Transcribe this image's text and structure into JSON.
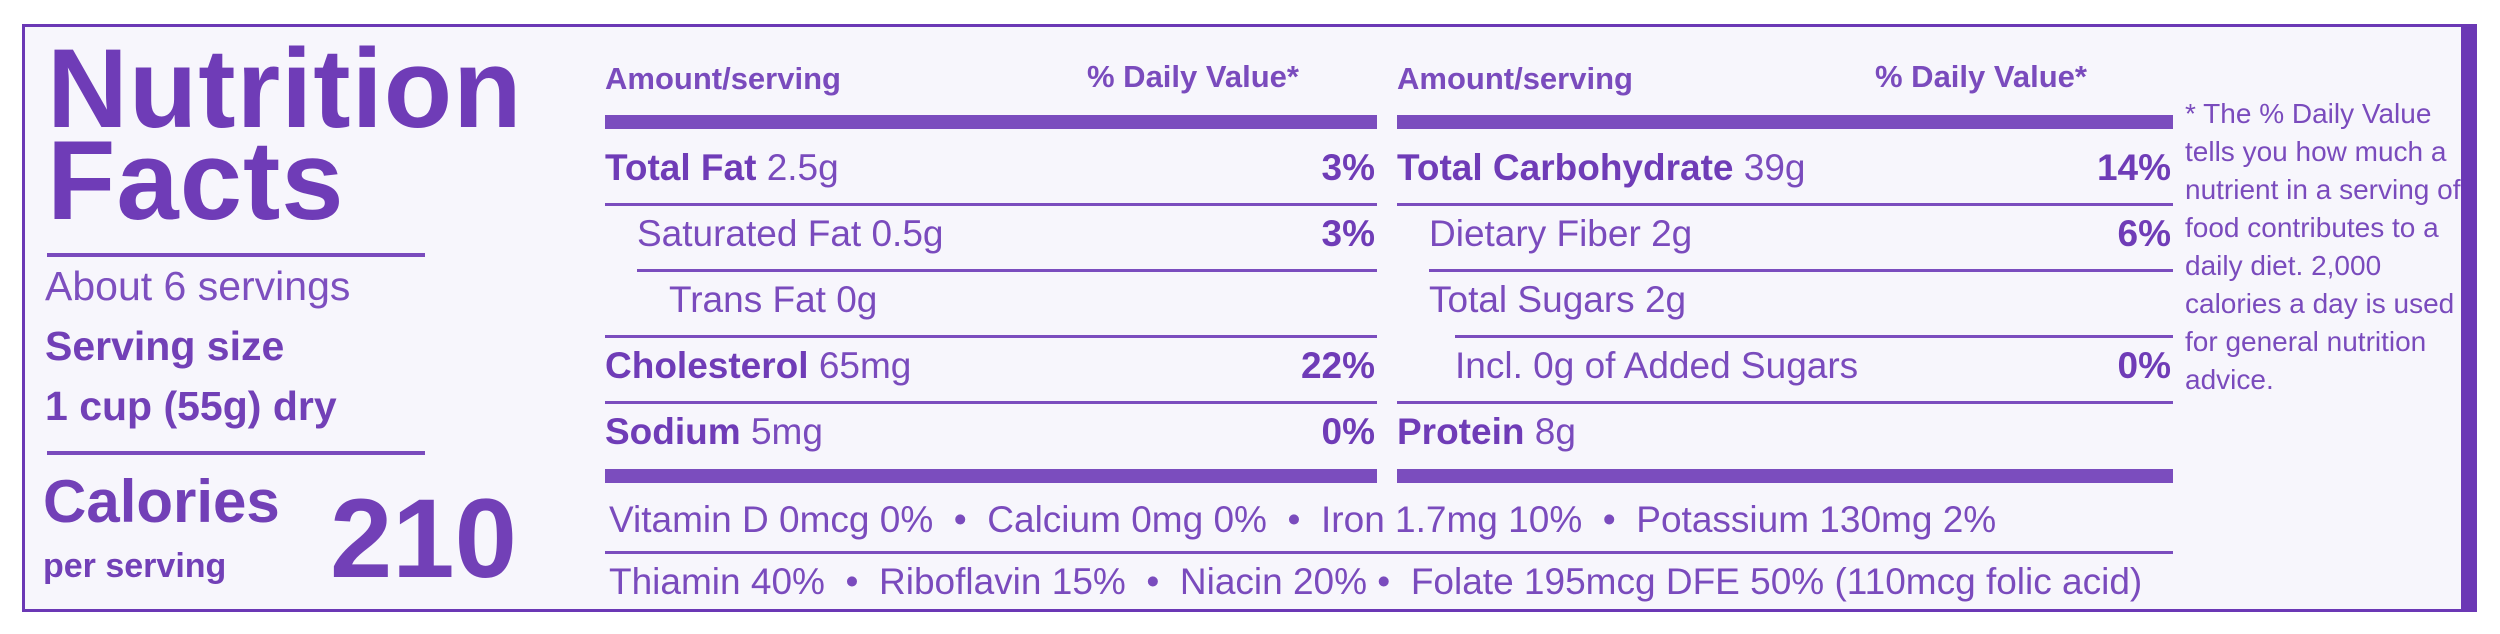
{
  "panel": {
    "title_line1": "Nutrition",
    "title_line2": "Facts",
    "servings": "About 6 servings",
    "serving_size_label": "Serving size",
    "serving_size_value": "1 cup (55g) dry",
    "calories_label": "Calories",
    "per_serving": "per serving",
    "calories_value": "210"
  },
  "left_table": {
    "header_amount": "Amount/serving",
    "header_dv": "% Daily Value*",
    "rows": [
      {
        "name": "Total Fat",
        "amount": "2.5g",
        "dv": "3%",
        "bold": true
      },
      {
        "name": "Saturated Fat",
        "amount": "0.5g",
        "dv": "3%",
        "bold": false
      },
      {
        "name": "Trans Fat",
        "amount": "0g",
        "dv": "",
        "bold": false
      },
      {
        "name": "Cholesterol",
        "amount": "65mg",
        "dv": "22%",
        "bold": true
      },
      {
        "name": "Sodium",
        "amount": "5mg",
        "dv": "0%",
        "bold": true
      }
    ]
  },
  "right_table": {
    "header_amount": "Amount/serving",
    "header_dv": "% Daily Value*",
    "rows": [
      {
        "name": "Total Carbohydrate",
        "amount": "39g",
        "dv": "14%",
        "bold": true
      },
      {
        "name": "Dietary Fiber",
        "amount": "2g",
        "dv": "6%",
        "bold": false
      },
      {
        "name": "Total Sugars",
        "amount": "2g",
        "dv": "",
        "bold": false
      },
      {
        "name": "Incl. 0g of Added Sugars",
        "amount": "",
        "dv": "0%",
        "bold": false
      },
      {
        "name": "Protein",
        "amount": "8g",
        "dv": "",
        "bold": true
      }
    ]
  },
  "vitamins": {
    "line1": "Vitamin D 0mcg 0%  •  Calcium 0mg 0%  •  Iron 1.7mg 10%  •  Potassium 130mg 2%",
    "line2": "Thiamin 40%  •  Riboflavin 15%  •  Niacin 20% •  Folate 195mcg DFE 50% (110mcg folic acid)"
  },
  "footnote": "* The % Daily Value tells you how much a nutrient in a serving of food contributes to a daily diet. 2,000 calories a day is used for general nutrition advice."
}
